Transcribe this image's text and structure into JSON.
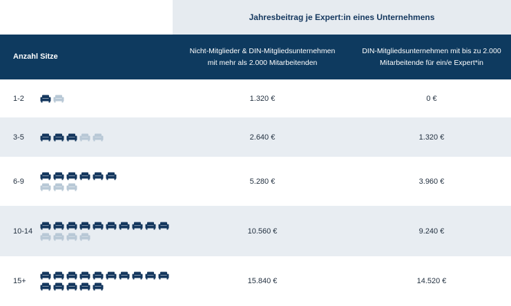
{
  "table": {
    "super_header": "Jahresbeitrag je Expert:in eines Unternehmens",
    "columns": {
      "seats": "Anzahl Sitze",
      "non_members": [
        "Nicht-Mitglieder & DIN-Mitgliedsunternehmen",
        "mit mehr als 2.000 Mitarbeitenden"
      ],
      "small_members": [
        "DIN-Mitgliedsunternehmen mit bis zu 2.000",
        "Mitarbeitende für ein/e Expert*in"
      ]
    },
    "rows": [
      {
        "seats": "1-2",
        "price_non_members": "1.320 €",
        "price_small_members": "0 €",
        "icons_filled": 1,
        "icons_light": 1
      },
      {
        "seats": "3-5",
        "price_non_members": "2.640 €",
        "price_small_members": "1.320 €",
        "icons_filled": 3,
        "icons_light": 2
      },
      {
        "seats": "6-9",
        "price_non_members": "5.280 €",
        "price_small_members": "3.960 €",
        "icons_filled": 6,
        "icons_light": 3
      },
      {
        "seats": "10-14",
        "price_non_members": "10.560 €",
        "price_small_members": "9.240 €",
        "icons_filled": 10,
        "icons_light": 4
      },
      {
        "seats": "15+",
        "price_non_members": "15.840 €",
        "price_small_members": "14.520 €",
        "icons_filled": 15,
        "icons_light": 0
      }
    ]
  },
  "icons": {
    "seat": "armchair-icon"
  },
  "colors": {
    "header_bg": "#0e3a5f",
    "band_bg": "#e6ebf0",
    "row_alt_bg": "#e8edf2",
    "icon_filled": "#14375e",
    "icon_light": "#b8c8d6"
  }
}
